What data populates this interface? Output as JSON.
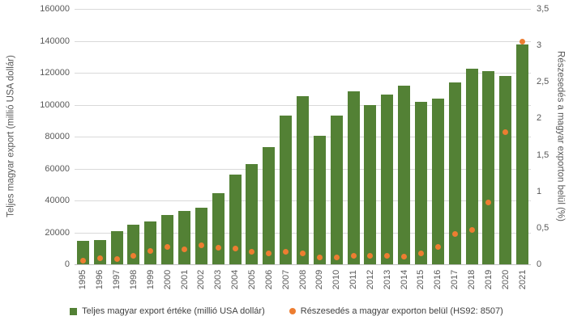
{
  "figure": {
    "background": "#ffffff",
    "colors": {
      "bar": "#538135",
      "dot": "#ed7d31",
      "gridline": "#d9d9d9",
      "axis_line": "#bfbfbf",
      "tick_text": "#595959",
      "legend_text": "#404040"
    },
    "left_axis": {
      "title": "Teljes magyar export (millió USA dollár)",
      "tick_labels": [
        "0",
        "20000",
        "40000",
        "60000",
        "80000",
        "100000",
        "120000",
        "140000",
        "160000"
      ]
    },
    "right_axis": {
      "title": "Részesedés a magyar exporton belül (%)",
      "tick_labels": [
        "0",
        "0,5",
        "1",
        "1,5",
        "2",
        "2,5",
        "3",
        "3,5"
      ]
    },
    "legend": {
      "bar_label": "Teljes magyar export értéke (millió USA dollár)",
      "dot_label": "Részesedés a magyar exporton belül (HS92: 8507)"
    }
  },
  "chart_data": {
    "type": "bar",
    "subtype": "combo-bar-scatter",
    "title": "",
    "xlabel": "",
    "ylabel_left": "Teljes magyar export (millió USA dollár)",
    "ylabel_right": "Részesedés a magyar exporton belül (%)",
    "ylim_left": [
      0,
      160000
    ],
    "ylim_right": [
      0,
      3.5
    ],
    "ytick_step_left": 20000,
    "ytick_step_right": 0.5,
    "grid": true,
    "legend_position": "bottom",
    "categories": [
      1995,
      1996,
      1997,
      1998,
      1999,
      2000,
      2001,
      2002,
      2003,
      2004,
      2005,
      2006,
      2007,
      2008,
      2009,
      2010,
      2011,
      2012,
      2013,
      2014,
      2015,
      2016,
      2017,
      2018,
      2019,
      2020,
      2021
    ],
    "series": [
      {
        "name": "Teljes magyar export értéke (millió USA dollár)",
        "type": "bar",
        "axis": "left",
        "color": "#538135",
        "values": [
          14500,
          15200,
          21000,
          25000,
          27000,
          31000,
          33300,
          35400,
          44600,
          56000,
          63000,
          73500,
          93300,
          105300,
          80500,
          93000,
          108200,
          100000,
          106500,
          112000,
          102000,
          103800,
          114000,
          122500,
          121000,
          118000,
          137700
        ]
      },
      {
        "name": "Részesedés a magyar exporton belül (HS92: 8507)",
        "type": "scatter",
        "axis": "right",
        "color": "#ed7d31",
        "values": [
          0.05,
          0.08,
          0.07,
          0.12,
          0.18,
          0.24,
          0.21,
          0.26,
          0.23,
          0.22,
          0.17,
          0.15,
          0.17,
          0.15,
          0.09,
          0.09,
          0.12,
          0.12,
          0.12,
          0.1,
          0.15,
          0.24,
          0.42,
          0.47,
          0.85,
          1.81,
          3.05
        ]
      }
    ]
  }
}
